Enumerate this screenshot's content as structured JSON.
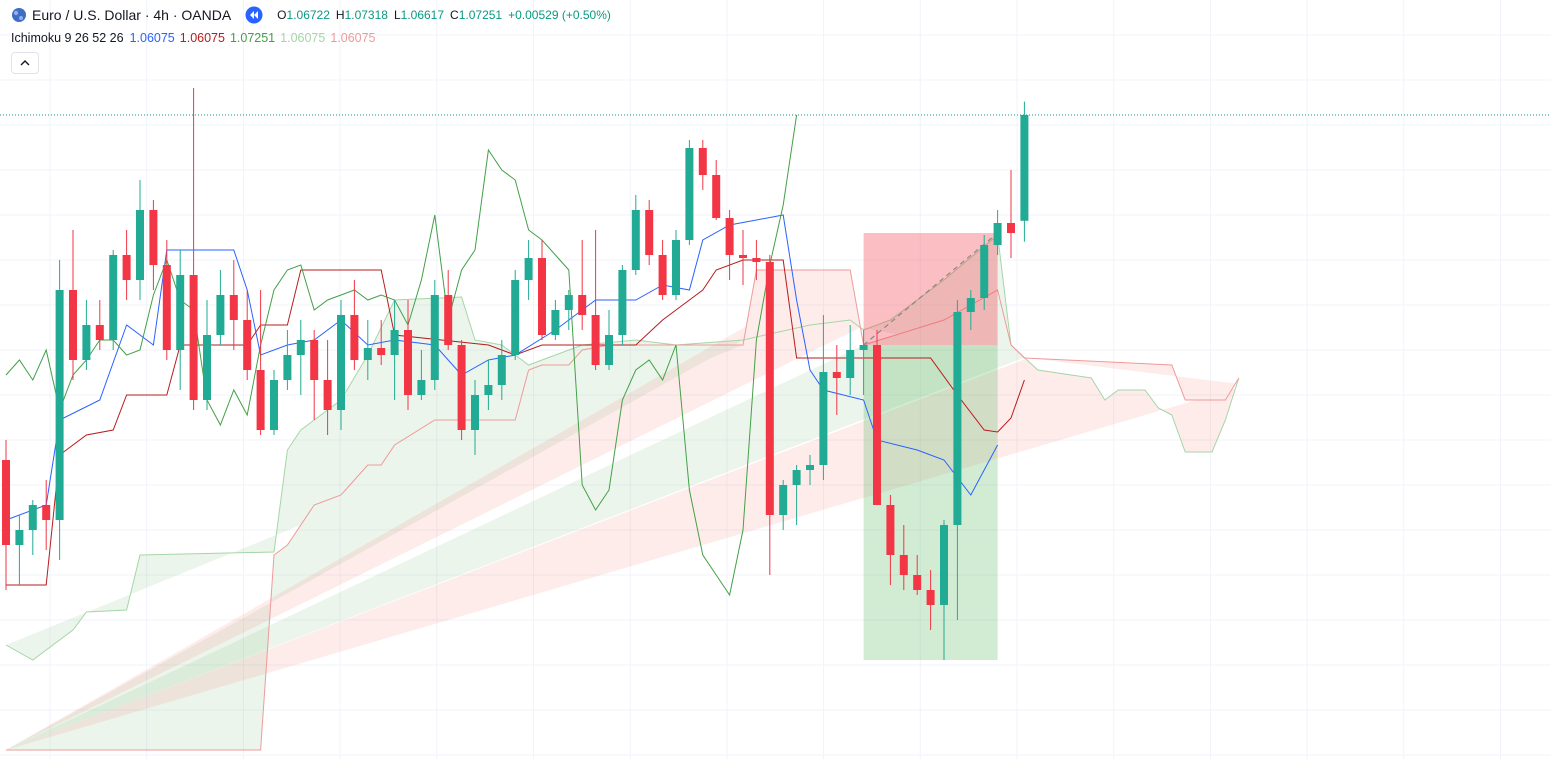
{
  "header": {
    "symbol": "Euro / U.S. Dollar · 4h · OANDA",
    "o_label": "O",
    "h_label": "H",
    "l_label": "L",
    "c_label": "C",
    "change": "+0.00529 (+0.50%)"
  },
  "indicator": {
    "label": "Ichimoku 9 26 52 26",
    "values": [
      1.06075,
      1.06075,
      1.07251,
      1.06075,
      1.06075
    ],
    "colors": [
      "#2962ff",
      "#b71c1c",
      "#43a047",
      "#a5d6a7",
      "#ef9a9a"
    ]
  },
  "chart_data": {
    "type": "candlestick",
    "ylim": [
      1.04031,
      1.07826
    ],
    "up_color": "#22ab94",
    "down_color": "#f23645",
    "candles": [
      [
        1.05526,
        1.05626,
        1.04876,
        1.05101
      ],
      [
        1.05101,
        1.05251,
        1.04901,
        1.05176
      ],
      [
        1.05176,
        1.05326,
        1.05051,
        1.05301
      ],
      [
        1.05301,
        1.05426,
        1.05076,
        1.05226
      ],
      [
        1.05226,
        1.06526,
        1.05026,
        1.06376
      ],
      [
        1.06376,
        1.06676,
        1.05926,
        1.06026
      ],
      [
        1.06026,
        1.06326,
        1.05976,
        1.06201
      ],
      [
        1.06201,
        1.06326,
        1.06076,
        1.06126
      ],
      [
        1.06126,
        1.06576,
        1.06076,
        1.06551
      ],
      [
        1.06551,
        1.06676,
        1.06326,
        1.06426
      ],
      [
        1.06426,
        1.06926,
        1.06326,
        1.06776
      ],
      [
        1.06776,
        1.06826,
        1.06376,
        1.06501
      ],
      [
        1.06501,
        1.06626,
        1.06026,
        1.06076
      ],
      [
        1.06076,
        1.06576,
        1.05876,
        1.06451
      ],
      [
        1.06451,
        1.07386,
        1.05776,
        1.05826
      ],
      [
        1.05826,
        1.06326,
        1.05776,
        1.06151
      ],
      [
        1.06151,
        1.06476,
        1.06101,
        1.06351
      ],
      [
        1.06351,
        1.06526,
        1.06076,
        1.06226
      ],
      [
        1.06226,
        1.06376,
        1.05926,
        1.05976
      ],
      [
        1.05976,
        1.06376,
        1.05651,
        1.05676
      ],
      [
        1.05676,
        1.05976,
        1.05651,
        1.05926
      ],
      [
        1.05926,
        1.06176,
        1.05876,
        1.06051
      ],
      [
        1.06051,
        1.06226,
        1.05851,
        1.06126
      ],
      [
        1.06126,
        1.06176,
        1.05726,
        1.05926
      ],
      [
        1.05926,
        1.06126,
        1.05651,
        1.05776
      ],
      [
        1.05776,
        1.06326,
        1.05676,
        1.06251
      ],
      [
        1.06251,
        1.06426,
        1.05976,
        1.06026
      ],
      [
        1.06026,
        1.06226,
        1.05926,
        1.06086
      ],
      [
        1.06086,
        1.06226,
        1.06001,
        1.06051
      ],
      [
        1.06051,
        1.06326,
        1.05826,
        1.06176
      ],
      [
        1.06176,
        1.06326,
        1.05776,
        1.05851
      ],
      [
        1.05851,
        1.06076,
        1.05826,
        1.05926
      ],
      [
        1.05926,
        1.06426,
        1.05876,
        1.06351
      ],
      [
        1.06351,
        1.06476,
        1.06076,
        1.06101
      ],
      [
        1.06101,
        1.06126,
        1.05626,
        1.05676
      ],
      [
        1.05676,
        1.05926,
        1.05551,
        1.05851
      ],
      [
        1.05851,
        1.06026,
        1.05776,
        1.05901
      ],
      [
        1.05901,
        1.06126,
        1.05826,
        1.06051
      ],
      [
        1.06051,
        1.06476,
        1.06026,
        1.06426
      ],
      [
        1.06426,
        1.06626,
        1.06326,
        1.06536
      ],
      [
        1.06536,
        1.06626,
        1.06126,
        1.06151
      ],
      [
        1.06151,
        1.06326,
        1.06126,
        1.06276
      ],
      [
        1.06276,
        1.06376,
        1.06176,
        1.06351
      ],
      [
        1.06351,
        1.06626,
        1.06176,
        1.06251
      ],
      [
        1.06251,
        1.06676,
        1.05976,
        1.06001
      ],
      [
        1.06001,
        1.06276,
        1.05976,
        1.06151
      ],
      [
        1.06151,
        1.06501,
        1.06101,
        1.06476
      ],
      [
        1.06476,
        1.06851,
        1.06451,
        1.06776
      ],
      [
        1.06776,
        1.06826,
        1.06501,
        1.06551
      ],
      [
        1.06551,
        1.06626,
        1.06326,
        1.06351
      ],
      [
        1.06351,
        1.06676,
        1.06326,
        1.06626
      ],
      [
        1.06626,
        1.07126,
        1.06601,
        1.07086
      ],
      [
        1.07086,
        1.07126,
        1.06876,
        1.06951
      ],
      [
        1.06951,
        1.07026,
        1.06726,
        1.06736
      ],
      [
        1.06736,
        1.06776,
        1.06426,
        1.06551
      ],
      [
        1.06551,
        1.06676,
        1.06401,
        1.06536
      ],
      [
        1.06536,
        1.06626,
        1.06426,
        1.06516
      ],
      [
        1.06516,
        1.06551,
        1.04951,
        1.05251
      ],
      [
        1.05251,
        1.05426,
        1.05176,
        1.05401
      ],
      [
        1.05401,
        1.05501,
        1.05201,
        1.05476
      ],
      [
        1.05476,
        1.05551,
        1.05401,
        1.05501
      ],
      [
        1.05501,
        1.06251,
        1.05426,
        1.05966
      ],
      [
        1.05966,
        1.06101,
        1.05751,
        1.05936
      ],
      [
        1.05936,
        1.06201,
        1.05851,
        1.06076
      ],
      [
        1.06076,
        1.06176,
        1.05851,
        1.06101
      ],
      [
        1.06101,
        1.06176,
        1.05301,
        1.05301
      ],
      [
        1.05301,
        1.05351,
        1.04901,
        1.05051
      ],
      [
        1.05051,
        1.05201,
        1.04876,
        1.04951
      ],
      [
        1.04951,
        1.05051,
        1.04851,
        1.04876
      ],
      [
        1.04876,
        1.04976,
        1.04676,
        1.04801
      ],
      [
        1.04801,
        1.05226,
        1.04526,
        1.05201
      ],
      [
        1.05201,
        1.06326,
        1.04726,
        1.06266
      ],
      [
        1.06266,
        1.06376,
        1.06176,
        1.06336
      ],
      [
        1.06336,
        1.06651,
        1.06276,
        1.06601
      ],
      [
        1.06601,
        1.06776,
        1.06551,
        1.06711
      ],
      [
        1.06711,
        1.06976,
        1.06536,
        1.06661
      ],
      [
        1.06722,
        1.07318,
        1.06617,
        1.07251
      ]
    ],
    "lines": [
      {
        "color": "#2962ff",
        "points": [
          [
            0,
            1.05226
          ],
          [
            3,
            1.05301
          ],
          [
            4,
            1.05726
          ],
          [
            7,
            1.05826
          ],
          [
            9,
            1.06201
          ],
          [
            11,
            1.06101
          ],
          [
            12,
            1.06576
          ],
          [
            15,
            1.06576
          ],
          [
            17,
            1.06576
          ],
          [
            18,
            1.06376
          ],
          [
            19,
            1.06051
          ],
          [
            21,
            1.06101
          ],
          [
            23,
            1.06126
          ],
          [
            25,
            1.06226
          ],
          [
            27,
            1.06101
          ],
          [
            29,
            1.06126
          ],
          [
            32,
            1.06101
          ],
          [
            34,
            1.05951
          ],
          [
            36,
            1.06026
          ],
          [
            38,
            1.06051
          ],
          [
            41,
            1.06176
          ],
          [
            44,
            1.06326
          ],
          [
            47,
            1.06326
          ],
          [
            49,
            1.06401
          ],
          [
            51,
            1.06376
          ],
          [
            52,
            1.06626
          ],
          [
            54,
            1.06701
          ],
          [
            56,
            1.06726
          ],
          [
            58,
            1.06751
          ],
          [
            59,
            1.06326
          ],
          [
            60,
            1.05976
          ],
          [
            61,
            1.05876
          ],
          [
            64,
            1.05826
          ],
          [
            65,
            1.05626
          ],
          [
            68,
            1.05576
          ],
          [
            70,
            1.05526
          ],
          [
            72,
            1.05351
          ],
          [
            74,
            1.05601
          ]
        ]
      },
      {
        "color": "#b71c1c",
        "points": [
          [
            0,
            1.04901
          ],
          [
            3,
            1.04901
          ],
          [
            4,
            1.05551
          ],
          [
            6,
            1.05651
          ],
          [
            8,
            1.05676
          ],
          [
            9,
            1.05851
          ],
          [
            12,
            1.05851
          ],
          [
            13,
            1.06101
          ],
          [
            18,
            1.06101
          ],
          [
            19,
            1.06201
          ],
          [
            21,
            1.06201
          ],
          [
            22,
            1.06476
          ],
          [
            28,
            1.06476
          ],
          [
            29,
            1.06151
          ],
          [
            36,
            1.06101
          ],
          [
            38,
            1.06051
          ],
          [
            40,
            1.06101
          ],
          [
            47,
            1.06101
          ],
          [
            49,
            1.06226
          ],
          [
            51,
            1.06326
          ],
          [
            52,
            1.06376
          ],
          [
            53,
            1.06476
          ],
          [
            55,
            1.06526
          ],
          [
            58,
            1.06526
          ],
          [
            59,
            1.06036
          ],
          [
            69,
            1.06036
          ],
          [
            71,
            1.05851
          ],
          [
            73,
            1.05676
          ],
          [
            74,
            1.05666
          ],
          [
            75,
            1.05736
          ],
          [
            76,
            1.05926
          ]
        ]
      }
    ],
    "chikou": {
      "color": "#43a047",
      "values": [
        1.05951,
        1.06026,
        1.05926,
        1.06076,
        1.05776,
        1.05951,
        1.06026,
        1.06126,
        1.06126,
        1.06051,
        1.06076,
        1.06351,
        1.06526,
        1.06326,
        1.06276,
        1.05826,
        1.05701,
        1.05876,
        1.05751,
        1.06101,
        1.06376,
        1.06476,
        1.06501,
        1.06276,
        1.06326,
        1.06351,
        1.06376,
        1.06326,
        1.06351,
        1.06326,
        1.06201,
        1.06426,
        1.06751,
        1.06226,
        1.06476,
        1.06576,
        1.07076,
        1.06976,
        1.06926,
        1.06676,
        1.06626,
        1.06551,
        1.06476,
        1.05401,
        1.05276,
        1.05376,
        1.05826,
        1.05976,
        1.06026,
        1.05926,
        1.06101,
        1.05376,
        1.05051,
        1.04951,
        1.04851,
        1.05176,
        1.06126,
        1.06501,
        1.06801,
        1.07251
      ]
    },
    "cloud": {
      "up_fill": "rgba(67,160,71,0.10)",
      "down_fill": "rgba(244,67,54,0.10)",
      "span_a": {
        "color": "#a5d6a7",
        "points": [
          [
            0,
            1.04601
          ],
          [
            2,
            1.04526
          ],
          [
            5,
            1.04676
          ],
          [
            6,
            1.04766
          ],
          [
            9,
            1.04776
          ],
          [
            10,
            1.05051
          ],
          [
            20,
            1.05066
          ],
          [
            21,
            1.05576
          ],
          [
            22,
            1.05676
          ],
          [
            23,
            1.05726
          ],
          [
            25,
            1.05826
          ],
          [
            27,
            1.06051
          ],
          [
            29,
            1.06326
          ],
          [
            34,
            1.06341
          ],
          [
            35,
            1.06126
          ],
          [
            37,
            1.06101
          ],
          [
            39,
            1.06001
          ],
          [
            43,
            1.06101
          ],
          [
            47,
            1.06126
          ],
          [
            50,
            1.06101
          ],
          [
            55,
            1.06126
          ],
          [
            60,
            1.06201
          ],
          [
            63,
            1.06226
          ],
          [
            64,
            1.06176
          ],
          [
            66,
            1.06226
          ],
          [
            70,
            1.06426
          ],
          [
            74,
            1.06651
          ],
          [
            75,
            1.06101
          ],
          [
            77,
            1.05976
          ],
          [
            81,
            1.05936
          ],
          [
            82,
            1.05826
          ],
          [
            83,
            1.05876
          ],
          [
            85,
            1.05876
          ],
          [
            86,
            1.05786
          ],
          [
            87,
            1.05751
          ],
          [
            88,
            1.05566
          ],
          [
            90,
            1.05566
          ],
          [
            91,
            1.05726
          ],
          [
            92,
            1.05936
          ]
        ]
      },
      "span_b": {
        "color": "#ef9a9a",
        "points": [
          [
            0,
            1.04076
          ],
          [
            19,
            1.04076
          ],
          [
            20,
            1.05051
          ],
          [
            21,
            1.05101
          ],
          [
            23,
            1.05301
          ],
          [
            25,
            1.05351
          ],
          [
            26,
            1.05426
          ],
          [
            27,
            1.05501
          ],
          [
            28,
            1.05501
          ],
          [
            29,
            1.05601
          ],
          [
            32,
            1.05726
          ],
          [
            38,
            1.05726
          ],
          [
            39,
            1.05976
          ],
          [
            40,
            1.06001
          ],
          [
            42,
            1.06001
          ],
          [
            43,
            1.06076
          ],
          [
            45,
            1.06101
          ],
          [
            55,
            1.06101
          ],
          [
            56,
            1.06476
          ],
          [
            63,
            1.06476
          ],
          [
            64,
            1.06101
          ],
          [
            70,
            1.06226
          ],
          [
            74,
            1.06376
          ],
          [
            75,
            1.06101
          ],
          [
            76,
            1.06036
          ],
          [
            87,
            1.06001
          ],
          [
            88,
            1.05826
          ],
          [
            91,
            1.05826
          ],
          [
            92,
            1.05936
          ]
        ]
      }
    },
    "position": {
      "start": 64,
      "end": 74,
      "entry": 1.06101,
      "stop": 1.06661,
      "target": 1.04526
    }
  }
}
